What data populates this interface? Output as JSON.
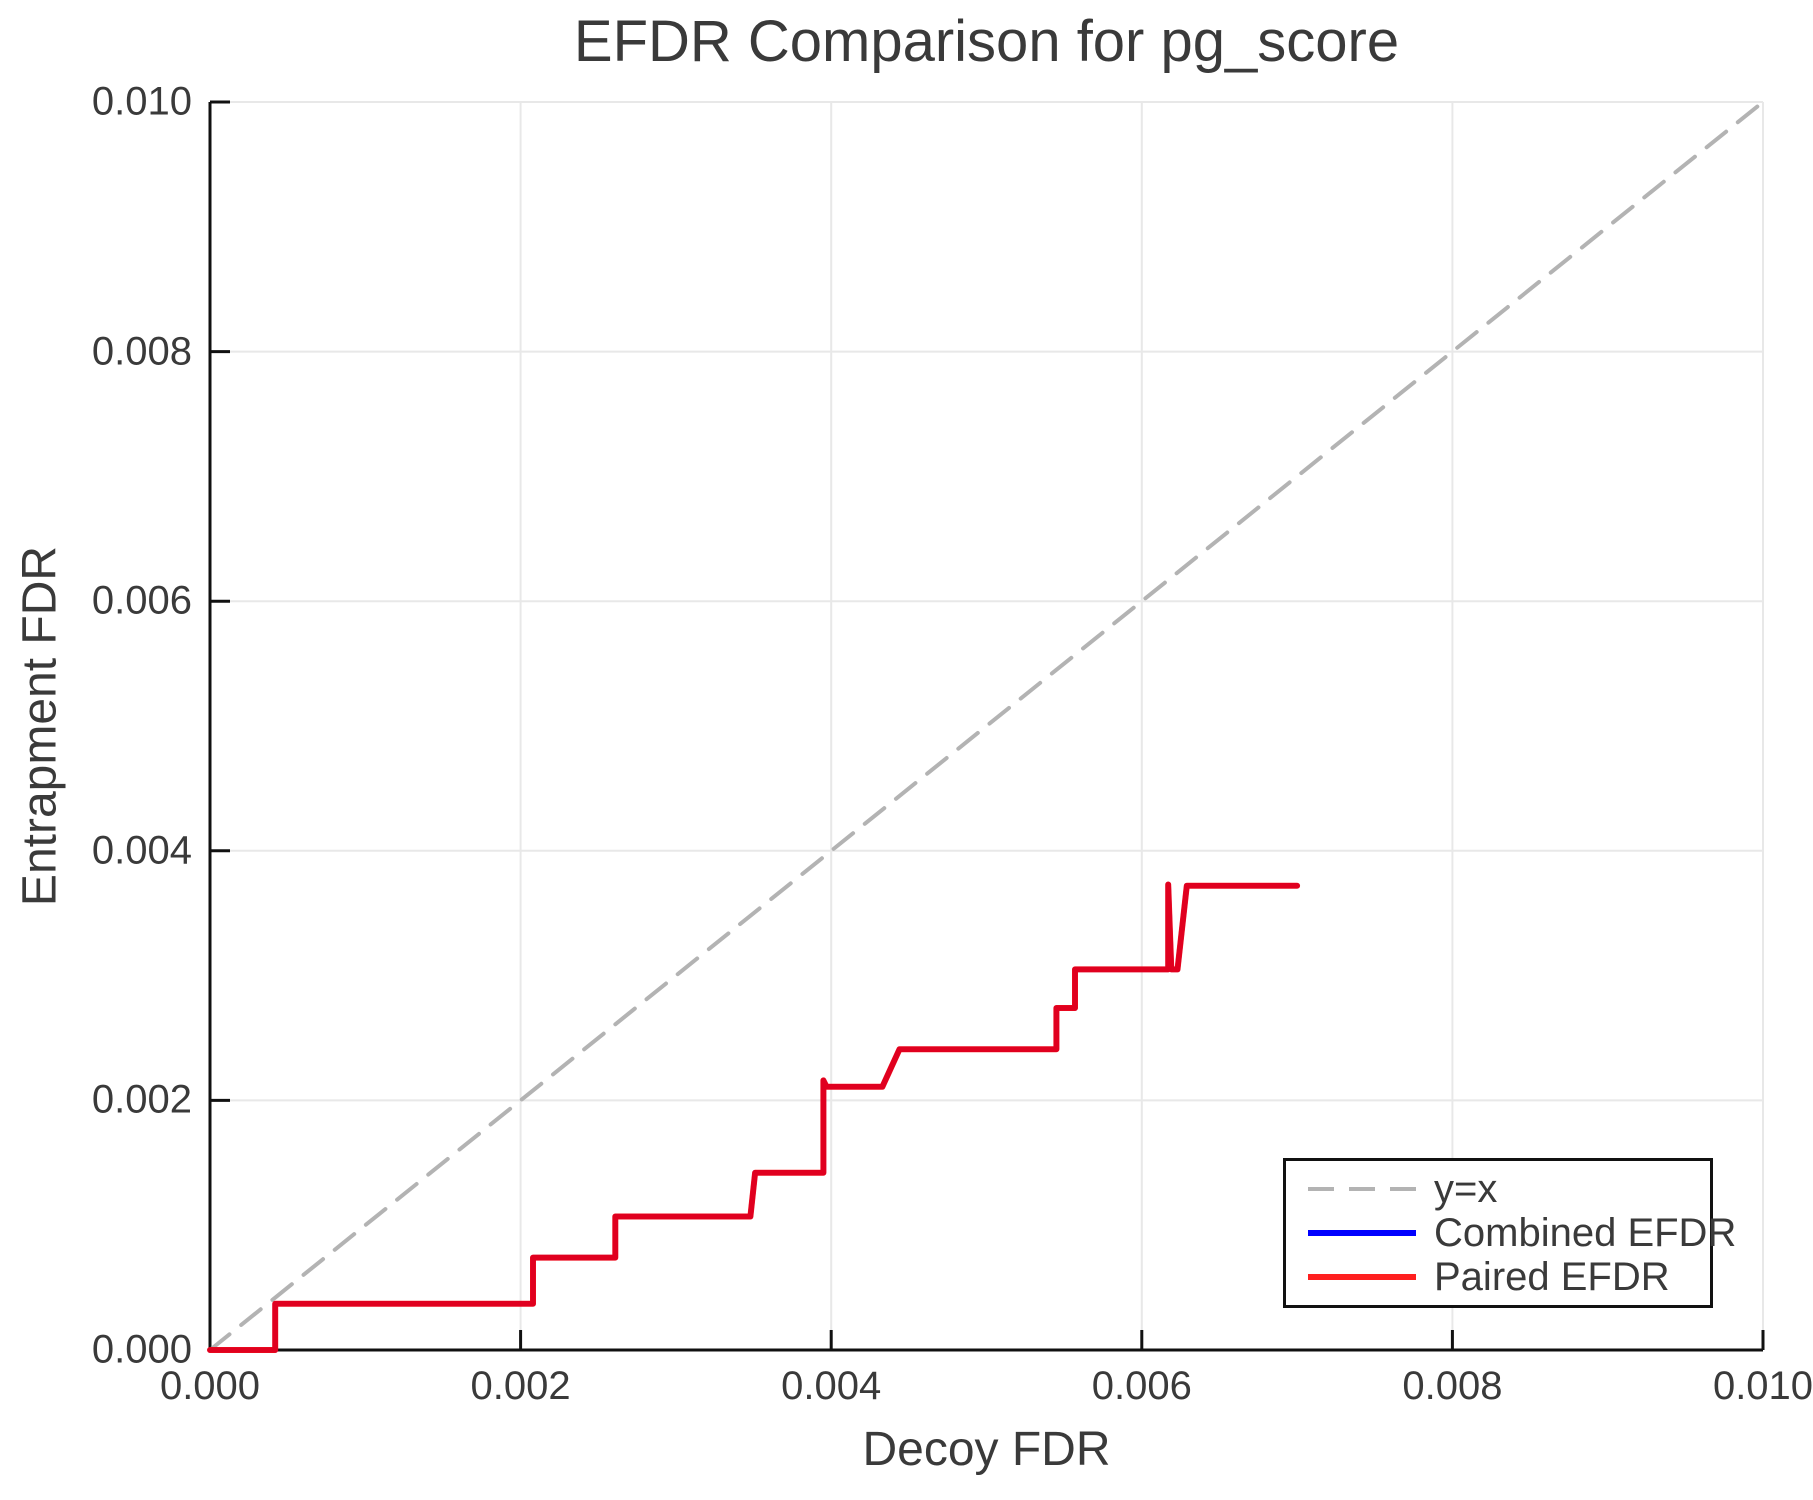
{
  "chart_data": {
    "type": "line",
    "title": "EFDR Comparison for pg_score",
    "xlabel": "Decoy FDR",
    "ylabel": "Entrapment FDR",
    "xlim": [
      0.0,
      0.01
    ],
    "ylim": [
      0.0,
      0.01
    ],
    "xtick_values": [
      0.0,
      0.002,
      0.004,
      0.006,
      0.008,
      0.01
    ],
    "xtick_labels": [
      "0.000",
      "0.002",
      "0.004",
      "0.006",
      "0.008",
      "0.010"
    ],
    "ytick_values": [
      0.0,
      0.002,
      0.004,
      0.006,
      0.008,
      0.01
    ],
    "ytick_labels": [
      "0.000",
      "0.002",
      "0.004",
      "0.006",
      "0.008",
      "0.010"
    ],
    "grid": "on",
    "text_color": "#3a3a3a",
    "grid_color": "#e8e8e8",
    "spine_color": "#111111",
    "legend_position": "lower-right",
    "legend": {
      "items": [
        {
          "label": "y=x",
          "color": "#b3b3b3",
          "style": "dashed",
          "opacity": 1
        },
        {
          "label": "Combined EFDR",
          "color": "#0000ff",
          "style": "solid",
          "opacity": 1
        },
        {
          "label": "Paired EFDR",
          "color": "#ff0000",
          "style": "solid",
          "opacity": 0.88
        }
      ]
    },
    "series": [
      {
        "name": "y=x",
        "color": "#b3b3b3",
        "style": "dashed",
        "width": 4,
        "opacity": 1,
        "points": [
          [
            0.0,
            0.0
          ],
          [
            0.01,
            0.01
          ]
        ]
      },
      {
        "name": "Combined EFDR",
        "color": "#0000ff",
        "style": "solid",
        "width": 5.5,
        "opacity": 1,
        "points": [
          [
            0.0,
            0.0
          ],
          [
            0.00042,
            0.0
          ],
          [
            0.00042,
            0.00037
          ],
          [
            0.00208,
            0.00037
          ],
          [
            0.00208,
            0.00074
          ],
          [
            0.00261,
            0.00074
          ],
          [
            0.00261,
            0.00107
          ],
          [
            0.00348,
            0.00107
          ],
          [
            0.00351,
            0.00142
          ],
          [
            0.00395,
            0.00142
          ],
          [
            0.00395,
            0.00216
          ],
          [
            0.00397,
            0.00211
          ],
          [
            0.00433,
            0.00211
          ],
          [
            0.00444,
            0.00241
          ],
          [
            0.00545,
            0.00241
          ],
          [
            0.00545,
            0.00274
          ],
          [
            0.00557,
            0.00274
          ],
          [
            0.00557,
            0.00305
          ],
          [
            0.00617,
            0.00305
          ],
          [
            0.00617,
            0.00373
          ],
          [
            0.00619,
            0.00305
          ],
          [
            0.00623,
            0.00305
          ],
          [
            0.00629,
            0.00372
          ],
          [
            0.007,
            0.00372
          ]
        ]
      },
      {
        "name": "Paired EFDR",
        "color": "#ff0000",
        "style": "solid",
        "width": 6,
        "opacity": 0.88,
        "points": [
          [
            0.0,
            0.0
          ],
          [
            0.00042,
            0.0
          ],
          [
            0.00042,
            0.00037
          ],
          [
            0.00208,
            0.00037
          ],
          [
            0.00208,
            0.00074
          ],
          [
            0.00261,
            0.00074
          ],
          [
            0.00261,
            0.00107
          ],
          [
            0.00348,
            0.00107
          ],
          [
            0.00351,
            0.00142
          ],
          [
            0.00395,
            0.00142
          ],
          [
            0.00395,
            0.00216
          ],
          [
            0.00397,
            0.00211
          ],
          [
            0.00433,
            0.00211
          ],
          [
            0.00444,
            0.00241
          ],
          [
            0.00545,
            0.00241
          ],
          [
            0.00545,
            0.00274
          ],
          [
            0.00557,
            0.00274
          ],
          [
            0.00557,
            0.00305
          ],
          [
            0.00617,
            0.00305
          ],
          [
            0.00617,
            0.00373
          ],
          [
            0.00619,
            0.00305
          ],
          [
            0.00623,
            0.00305
          ],
          [
            0.00629,
            0.00372
          ],
          [
            0.007,
            0.00372
          ]
        ]
      }
    ]
  }
}
